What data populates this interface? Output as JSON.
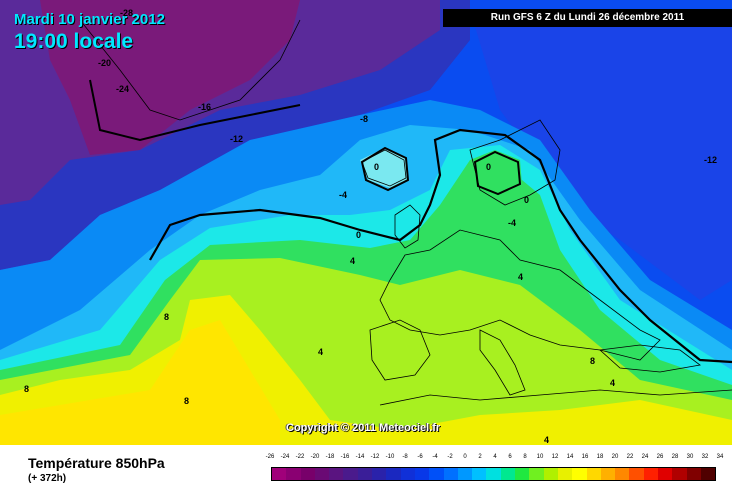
{
  "title": {
    "date": "Mardi 10 janvier 2012",
    "time": "19:00 locale"
  },
  "run_info": "Run GFS 6 Z du Lundi 26 décembre 2011",
  "copyright": "Copyright © 2011 Meteociel.fr",
  "legend": {
    "variable": "Température 850hPa",
    "lead_time": "(+ 372h)",
    "scale_labels": [
      "-26",
      "-24",
      "-22",
      "-20",
      "-18",
      "-16",
      "-14",
      "-12",
      "-10",
      "-8",
      "-6",
      "-4",
      "-2",
      "0",
      "2",
      "4",
      "6",
      "8",
      "10",
      "12",
      "14",
      "16",
      "18",
      "20",
      "22",
      "24",
      "26",
      "28",
      "30",
      "32",
      "34"
    ],
    "scale_colors": [
      "#a0007a",
      "#8a0072",
      "#78006a",
      "#6a0a74",
      "#5a1480",
      "#4a1a8c",
      "#3a1e98",
      "#2a22aa",
      "#1a28c0",
      "#1030d8",
      "#0838e8",
      "#0050f8",
      "#0070ff",
      "#0098ff",
      "#00c0ff",
      "#00e0e0",
      "#00e890",
      "#20e840",
      "#70f020",
      "#b0f000",
      "#e8f000",
      "#ffff00",
      "#ffd800",
      "#ffb000",
      "#ff8800",
      "#ff5000",
      "#ff2000",
      "#e00000",
      "#b00000",
      "#800000",
      "#500000"
    ]
  },
  "map": {
    "contour_labels": [
      "-28",
      "-20",
      "-24",
      "-16",
      "-12",
      "-8",
      "-12",
      "-4",
      "0",
      "0",
      "0",
      "0",
      "-4",
      "4",
      "4",
      "8",
      "4",
      "8",
      "8",
      "4",
      "8",
      "4"
    ],
    "colors": {
      "deep_purple": "#7a1a7a",
      "purple": "#5a2a9a",
      "indigo": "#2a36c0",
      "blue": "#0a4cf0",
      "light_blue": "#0a8af5",
      "sky": "#20b8f8",
      "cyan": "#1ce8e8",
      "pale_cyan": "#7ae8f0",
      "green": "#30e060",
      "lime": "#a8f020",
      "yellow": "#f0f000",
      "gold": "#ffe600",
      "land_outline": "#000000"
    }
  }
}
